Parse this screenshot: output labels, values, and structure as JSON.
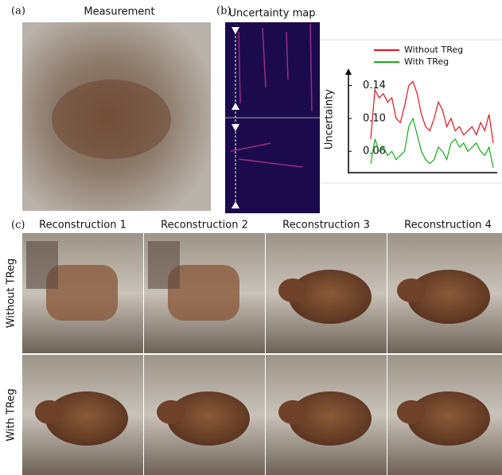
{
  "figure": {
    "panel_a": "(a)",
    "panel_b": "(b)",
    "panel_c": "(c)",
    "measurement_title": "Measurement",
    "uncertainty_title": "Uncertainty map",
    "columns": [
      "Reconstruction 1",
      "Reconstruction 2",
      "Reconstruction 3",
      "Reconstruction 4"
    ],
    "rows": [
      "Without TReg",
      "With TReg"
    ]
  },
  "chart_data": {
    "type": "line",
    "ylabel": "Uncertainty",
    "categories": [
      null,
      null,
      null,
      null,
      null,
      null,
      null,
      null,
      null,
      null,
      null,
      null,
      null,
      null,
      null,
      null,
      null,
      null,
      null,
      null,
      null,
      null,
      null,
      null,
      null,
      null,
      null,
      null,
      null,
      null
    ],
    "series": [
      {
        "name": "Without TReg",
        "color": "#e0141e",
        "values": [
          0.075,
          0.135,
          0.125,
          0.13,
          0.12,
          0.125,
          0.1,
          0.095,
          0.115,
          0.14,
          0.145,
          0.13,
          0.105,
          0.09,
          0.085,
          0.1,
          0.12,
          0.11,
          0.09,
          0.1,
          0.085,
          0.09,
          0.08,
          0.085,
          0.09,
          0.08,
          0.095,
          0.085,
          0.105,
          0.07
        ]
      },
      {
        "name": "With TReg",
        "color": "#1aa81a",
        "values": [
          0.045,
          0.075,
          0.06,
          0.065,
          0.055,
          0.06,
          0.05,
          0.055,
          0.06,
          0.09,
          0.1,
          0.08,
          0.06,
          0.05,
          0.045,
          0.05,
          0.065,
          0.06,
          0.05,
          0.07,
          0.075,
          0.065,
          0.07,
          0.06,
          0.065,
          0.07,
          0.06,
          0.055,
          0.065,
          0.04
        ]
      }
    ],
    "ylim": [
      0.034,
      0.157
    ],
    "yticks": [
      0.06,
      {
        "value": 0.1,
        "label": "0.10"
      },
      0.14
    ],
    "grid": false
  }
}
